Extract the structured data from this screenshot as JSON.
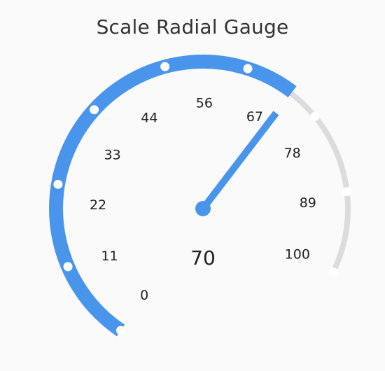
{
  "title": "Scale Radial Gauge",
  "gauge": {
    "min": 0,
    "max": 100,
    "value": 70,
    "value_label": "70",
    "tick_labels": [
      "0",
      "11",
      "22",
      "33",
      "44",
      "56",
      "67",
      "78",
      "89",
      "100"
    ],
    "tick_values": [
      0,
      11,
      22,
      33,
      44,
      56,
      67,
      78,
      89,
      100
    ],
    "marker_values": [
      0,
      12.5,
      25,
      37.5,
      50,
      62.5,
      75,
      87.5,
      100
    ],
    "progress_color": "#4a95ec",
    "track_color": "#dcdcdc",
    "needle_color": "#4a95ec",
    "marker_color": "#ffffff"
  }
}
